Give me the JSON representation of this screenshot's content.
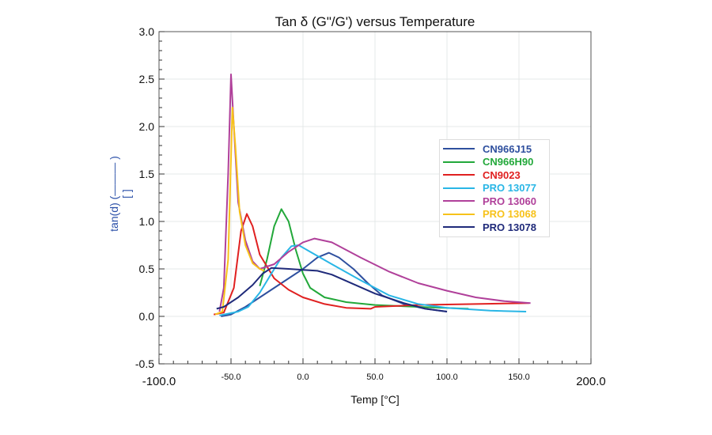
{
  "chart_data": {
    "type": "line",
    "title": "Tan δ (G\"/G')   versus Temperature",
    "xlabel": "Temp [°C]",
    "ylabel": [
      "tan(d) (——— )",
      "[ ]"
    ],
    "xlim": [
      -100,
      200
    ],
    "ylim": [
      -0.5,
      3.0
    ],
    "x_ticks_major": [
      "-100.0",
      "200.0"
    ],
    "x_ticks_minor_labels": [
      "-50.0",
      "0.0",
      "50.0",
      "100.0",
      "150.0"
    ],
    "y_ticks": [
      "3.0",
      "2.5",
      "2.0",
      "1.5",
      "1.0",
      "0.5",
      "0.0",
      "-0.5"
    ],
    "grid": true,
    "legend_position": "right",
    "series": [
      {
        "name": "CN966J15",
        "color": "#2e4f9e",
        "points": [
          [
            -57,
            0.0
          ],
          [
            -50,
            0.02
          ],
          [
            -40,
            0.1
          ],
          [
            -30,
            0.2
          ],
          [
            -20,
            0.3
          ],
          [
            -10,
            0.4
          ],
          [
            0,
            0.5
          ],
          [
            10,
            0.62
          ],
          [
            18,
            0.67
          ],
          [
            25,
            0.62
          ],
          [
            35,
            0.5
          ],
          [
            45,
            0.35
          ],
          [
            55,
            0.22
          ],
          [
            70,
            0.13
          ],
          [
            85,
            0.08
          ],
          [
            100,
            0.05
          ]
        ]
      },
      {
        "name": "CN966H90",
        "color": "#22a83a",
        "points": [
          [
            -30,
            0.32
          ],
          [
            -25,
            0.6
          ],
          [
            -20,
            0.95
          ],
          [
            -15,
            1.13
          ],
          [
            -10,
            1.0
          ],
          [
            -5,
            0.7
          ],
          [
            0,
            0.45
          ],
          [
            5,
            0.3
          ],
          [
            15,
            0.2
          ],
          [
            30,
            0.15
          ],
          [
            50,
            0.12
          ],
          [
            80,
            0.1
          ],
          [
            115,
            0.08
          ]
        ]
      },
      {
        "name": "CN9023",
        "color": "#e02020",
        "points": [
          [
            -62,
            0.02
          ],
          [
            -55,
            0.04
          ],
          [
            -48,
            0.3
          ],
          [
            -43,
            0.9
          ],
          [
            -39,
            1.08
          ],
          [
            -35,
            0.95
          ],
          [
            -30,
            0.65
          ],
          [
            -20,
            0.4
          ],
          [
            -10,
            0.28
          ],
          [
            0,
            0.2
          ],
          [
            15,
            0.13
          ],
          [
            30,
            0.09
          ],
          [
            47,
            0.08
          ],
          [
            50,
            0.1
          ],
          [
            80,
            0.12
          ],
          [
            120,
            0.13
          ],
          [
            157,
            0.14
          ]
        ]
      },
      {
        "name": "PRO 13077",
        "color": "#29b6e6",
        "points": [
          [
            -58,
            0.01
          ],
          [
            -45,
            0.05
          ],
          [
            -38,
            0.1
          ],
          [
            -30,
            0.25
          ],
          [
            -22,
            0.45
          ],
          [
            -15,
            0.62
          ],
          [
            -8,
            0.74
          ],
          [
            -3,
            0.75
          ],
          [
            5,
            0.68
          ],
          [
            20,
            0.55
          ],
          [
            40,
            0.38
          ],
          [
            60,
            0.22
          ],
          [
            80,
            0.13
          ],
          [
            100,
            0.09
          ],
          [
            130,
            0.06
          ],
          [
            155,
            0.05
          ]
        ]
      },
      {
        "name": "PRO 13060",
        "color": "#b0409a",
        "points": [
          [
            -58,
            0.05
          ],
          [
            -55,
            0.3
          ],
          [
            -52,
            1.5
          ],
          [
            -50,
            2.55
          ],
          [
            -48,
            2.0
          ],
          [
            -45,
            1.2
          ],
          [
            -40,
            0.8
          ],
          [
            -35,
            0.58
          ],
          [
            -30,
            0.5
          ],
          [
            -20,
            0.55
          ],
          [
            -10,
            0.68
          ],
          [
            0,
            0.78
          ],
          [
            8,
            0.82
          ],
          [
            20,
            0.78
          ],
          [
            40,
            0.62
          ],
          [
            60,
            0.47
          ],
          [
            80,
            0.35
          ],
          [
            100,
            0.27
          ],
          [
            120,
            0.2
          ],
          [
            140,
            0.16
          ],
          [
            158,
            0.14
          ]
        ]
      },
      {
        "name": "PRO 13068",
        "color": "#f7c21a",
        "points": [
          [
            -61,
            0.02
          ],
          [
            -56,
            0.05
          ],
          [
            -52,
            0.6
          ],
          [
            -49,
            2.2
          ],
          [
            -47,
            1.8
          ],
          [
            -44,
            1.1
          ],
          [
            -40,
            0.75
          ],
          [
            -35,
            0.56
          ],
          [
            -30,
            0.5
          ],
          [
            -27,
            0.48
          ]
        ]
      },
      {
        "name": "PRO 13078",
        "color": "#1f2a7a",
        "points": [
          [
            -60,
            0.08
          ],
          [
            -55,
            0.1
          ],
          [
            -45,
            0.2
          ],
          [
            -35,
            0.33
          ],
          [
            -28,
            0.45
          ],
          [
            -22,
            0.51
          ],
          [
            -10,
            0.5
          ],
          [
            0,
            0.49
          ],
          [
            10,
            0.48
          ],
          [
            20,
            0.44
          ],
          [
            35,
            0.34
          ],
          [
            50,
            0.24
          ],
          [
            70,
            0.14
          ],
          [
            85,
            0.08
          ],
          [
            100,
            0.05
          ]
        ]
      }
    ]
  }
}
